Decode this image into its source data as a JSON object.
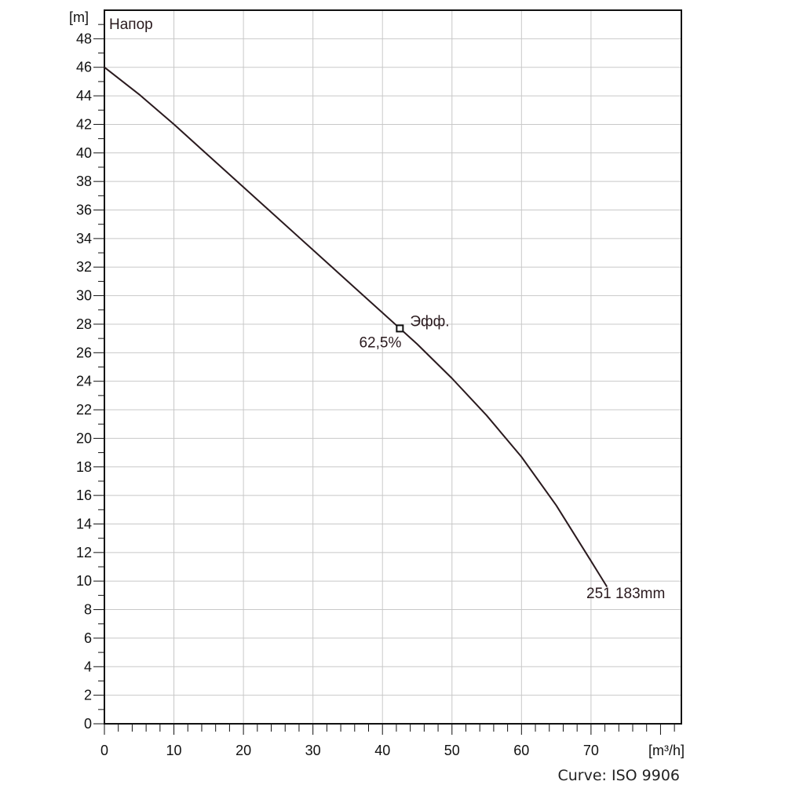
{
  "chart_data": {
    "type": "line",
    "title": "",
    "xlabel": "",
    "ylabel": "",
    "x_unit": "[m³/h]",
    "y_unit": "[m]",
    "series_label": "Напор",
    "xlim": [
      0,
      83
    ],
    "ylim": [
      0,
      50
    ],
    "x_ticks": [
      "0",
      "10",
      "20",
      "30",
      "40",
      "50",
      "60",
      "70"
    ],
    "y_ticks": [
      "0",
      "2",
      "4",
      "6",
      "8",
      "10",
      "12",
      "14",
      "16",
      "18",
      "20",
      "22",
      "24",
      "26",
      "28",
      "30",
      "32",
      "34",
      "36",
      "38",
      "40",
      "42",
      "44",
      "46",
      "48"
    ],
    "grid": true,
    "series": [
      {
        "name": "251 183mm",
        "color": "#2a1a1e",
        "x": [
          0,
          5,
          10,
          15,
          20,
          25,
          30,
          35,
          40,
          42.5,
          45,
          50,
          55,
          60,
          65,
          70,
          72.3
        ],
        "y": [
          46.0,
          44.1,
          42.0,
          39.8,
          37.6,
          35.4,
          33.2,
          31.0,
          28.8,
          27.7,
          26.6,
          24.2,
          21.6,
          18.7,
          15.3,
          11.4,
          9.6
        ]
      }
    ],
    "annotations": [
      {
        "text": "Эфф.",
        "x": 42.5,
        "y": 27.7
      },
      {
        "text": "62,5%",
        "x": 42.5,
        "y": 27.7
      }
    ],
    "footer": "Curve: ISO 9906"
  }
}
